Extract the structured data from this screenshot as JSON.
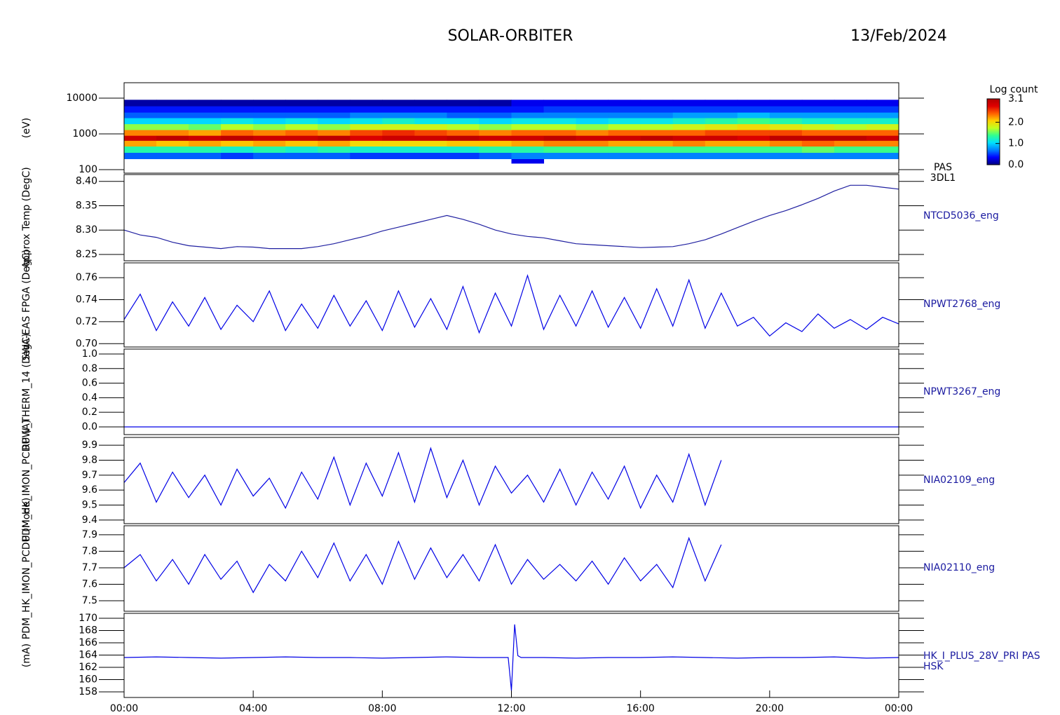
{
  "header": {
    "title": "SOLAR-ORBITER",
    "date": "13/Feb/2024"
  },
  "chart_data": [
    {
      "type": "heatmap",
      "ylabel": "(eV)",
      "labels": [
        "PAS",
        "3DL1"
      ],
      "log_y": true,
      "xlim": [
        0,
        24
      ],
      "ylim": [
        80,
        27000
      ],
      "yticks": [
        100,
        1000,
        10000
      ],
      "xbins": [
        0,
        1,
        2,
        3,
        4,
        5,
        6,
        7,
        8,
        9,
        10,
        11,
        12,
        13,
        14,
        15,
        16,
        17,
        18,
        19,
        20,
        21,
        22,
        23,
        24
      ],
      "ybins": [
        150,
        200,
        300,
        450,
        650,
        900,
        1300,
        1900,
        2800,
        4000,
        6000,
        9000
      ],
      "z": [
        [
          null,
          0.6,
          1.3,
          2.2,
          2.9,
          2.3,
          1.6,
          1.0,
          0.6,
          0.4,
          0.1
        ],
        [
          null,
          0.6,
          1.3,
          2.1,
          3.0,
          2.3,
          1.6,
          1.0,
          0.6,
          0.4,
          0.1
        ],
        [
          null,
          0.6,
          1.3,
          2.2,
          2.9,
          2.2,
          1.5,
          1.0,
          0.6,
          0.4,
          0.1
        ],
        [
          null,
          0.5,
          1.2,
          2.1,
          3.0,
          2.4,
          1.7,
          1.1,
          0.6,
          0.4,
          0.1
        ],
        [
          null,
          0.6,
          1.3,
          2.2,
          2.9,
          2.3,
          1.6,
          1.0,
          0.6,
          0.4,
          0.1
        ],
        [
          null,
          0.6,
          1.2,
          2.1,
          2.9,
          2.4,
          1.7,
          1.1,
          0.6,
          0.4,
          0.1
        ],
        [
          null,
          0.6,
          1.3,
          2.2,
          3.0,
          2.3,
          1.6,
          1.0,
          0.6,
          0.4,
          0.1
        ],
        [
          null,
          0.5,
          1.2,
          2.0,
          2.8,
          2.5,
          1.8,
          1.1,
          0.7,
          0.4,
          0.1
        ],
        [
          null,
          0.5,
          1.2,
          2.0,
          2.9,
          2.6,
          1.8,
          1.2,
          0.7,
          0.4,
          0.1
        ],
        [
          null,
          0.5,
          1.2,
          2.0,
          2.9,
          2.5,
          1.8,
          1.1,
          0.7,
          0.4,
          0.1
        ],
        [
          null,
          0.5,
          1.2,
          2.1,
          3.0,
          2.4,
          1.7,
          1.1,
          0.6,
          0.4,
          0.1
        ],
        [
          null,
          0.6,
          1.3,
          2.1,
          2.9,
          2.3,
          1.6,
          1.0,
          0.6,
          0.4,
          0.1
        ],
        [
          0.3,
          0.7,
          1.3,
          2.2,
          2.9,
          2.4,
          1.7,
          1.1,
          0.7,
          0.4,
          0.3
        ],
        [
          null,
          0.7,
          1.4,
          2.3,
          3.0,
          2.4,
          1.7,
          1.1,
          0.7,
          0.5,
          0.3
        ],
        [
          null,
          0.7,
          1.4,
          2.3,
          2.9,
          2.3,
          1.6,
          1.0,
          0.7,
          0.5,
          0.3
        ],
        [
          null,
          0.7,
          1.4,
          2.2,
          2.9,
          2.4,
          1.7,
          1.1,
          0.7,
          0.5,
          0.3
        ],
        [
          null,
          0.7,
          1.4,
          2.2,
          3.0,
          2.4,
          1.7,
          1.1,
          0.7,
          0.5,
          0.3
        ],
        [
          null,
          0.7,
          1.4,
          2.3,
          2.9,
          2.4,
          1.8,
          1.2,
          0.8,
          0.5,
          0.3
        ],
        [
          null,
          0.7,
          1.4,
          2.2,
          2.9,
          2.5,
          1.9,
          1.3,
          0.8,
          0.5,
          0.3
        ],
        [
          null,
          0.7,
          1.4,
          2.2,
          2.8,
          2.5,
          2.0,
          1.4,
          0.9,
          0.5,
          0.3
        ],
        [
          null,
          0.7,
          1.4,
          2.3,
          3.0,
          2.5,
          1.9,
          1.3,
          0.8,
          0.5,
          0.3
        ],
        [
          null,
          0.7,
          1.5,
          2.4,
          3.0,
          2.4,
          1.8,
          1.2,
          0.8,
          0.5,
          0.3
        ],
        [
          null,
          0.7,
          1.4,
          2.3,
          3.0,
          2.4,
          1.7,
          1.2,
          0.8,
          0.5,
          0.3
        ],
        [
          null,
          0.7,
          1.4,
          2.3,
          2.9,
          2.4,
          1.8,
          1.2,
          0.8,
          0.5,
          0.3
        ]
      ],
      "colorbar_title": "Log count",
      "clim": [
        0,
        3.1
      ],
      "cticks": [
        {
          "value": 0,
          "label": "0.0"
        },
        {
          "value": 1,
          "label": "1.0"
        },
        {
          "value": 2,
          "label": "2.0"
        },
        3.1
      ],
      "colorscale": [
        "#00007f",
        "#0000ff",
        "#0080ff",
        "#00e0ff",
        "#30ff90",
        "#c0ff20",
        "#ffd000",
        "#ff6000",
        "#e00000",
        "#b00000"
      ]
    },
    {
      "type": "line",
      "ylabel": "Approx Temp (DegC)",
      "xlim": [
        0,
        24
      ],
      "ylim": [
        8.237,
        8.414
      ],
      "yticks": [
        {
          "value": 8.25,
          "label": "8.25"
        },
        {
          "value": 8.3,
          "label": "8.30"
        },
        {
          "value": 8.35,
          "label": "8.35"
        },
        {
          "value": 8.4,
          "label": "8.40"
        }
      ],
      "x": [
        0,
        0.5,
        1,
        1.5,
        2,
        2.5,
        3,
        3.5,
        4,
        4.5,
        5,
        5.5,
        6,
        6.5,
        7,
        7.5,
        8,
        8.5,
        9,
        9.5,
        10,
        10.5,
        11,
        11.5,
        12,
        12.5,
        13,
        13.5,
        14,
        14.5,
        15,
        15.5,
        16,
        16.5,
        17,
        17.5,
        18,
        18.5,
        19,
        19.5,
        20,
        20.5,
        21,
        21.5,
        22,
        22.5,
        23,
        23.5,
        24
      ],
      "series": [
        {
          "name": "NTCD5036_eng",
          "color": "#1f1fa0",
          "values": [
            8.3,
            8.29,
            8.285,
            8.275,
            8.268,
            8.265,
            8.262,
            8.266,
            8.265,
            8.262,
            8.262,
            8.262,
            8.266,
            8.272,
            8.28,
            8.288,
            8.298,
            8.306,
            8.314,
            8.322,
            8.33,
            8.322,
            8.312,
            8.3,
            8.292,
            8.287,
            8.284,
            8.278,
            8.272,
            8.27,
            8.268,
            8.266,
            8.264,
            8.265,
            8.266,
            8.272,
            8.28,
            8.292,
            8.305,
            8.318,
            8.33,
            8.34,
            8.352,
            8.365,
            8.38,
            8.392,
            8.392,
            8.388,
            8.384
          ]
        }
      ]
    },
    {
      "type": "line",
      "ylabel": "SWA-EAS FPGA (DegC)",
      "xlim": [
        0,
        24
      ],
      "ylim": [
        0.697,
        0.7735
      ],
      "yticks": [
        {
          "value": 0.7,
          "label": "0.70"
        },
        0.72,
        0.74,
        0.76
      ],
      "x": [
        0,
        0.5,
        1,
        1.5,
        2,
        2.5,
        3,
        3.5,
        4,
        4.5,
        5,
        5.5,
        6,
        6.5,
        7,
        7.5,
        8,
        8.5,
        9,
        9.5,
        10,
        10.5,
        11,
        11.5,
        12,
        12.5,
        13,
        13.5,
        14,
        14.5,
        15,
        15.5,
        16,
        16.5,
        17,
        17.5,
        18,
        18.5,
        19,
        19.5,
        20,
        20.5,
        21,
        21.5,
        22,
        22.5,
        23,
        23.5,
        24
      ],
      "series": [
        {
          "name": "NPWT2768_eng",
          "color": "#0000e6",
          "values": [
            0.722,
            0.745,
            0.712,
            0.738,
            0.716,
            0.742,
            0.713,
            0.735,
            0.72,
            0.748,
            0.712,
            0.736,
            0.714,
            0.744,
            0.716,
            0.739,
            0.712,
            0.748,
            0.715,
            0.741,
            0.713,
            0.752,
            0.71,
            0.746,
            0.716,
            0.762,
            0.713,
            0.744,
            0.716,
            0.748,
            0.715,
            0.742,
            0.714,
            0.75,
            0.716,
            0.758,
            0.714,
            0.746,
            0.716,
            0.724,
            0.707,
            0.719,
            0.711,
            0.727,
            0.714,
            0.722,
            0.713,
            0.724,
            0.718
          ]
        }
      ]
    },
    {
      "type": "line",
      "ylabel": "RPW_THERM_14 (DegC)",
      "xlim": [
        0,
        24
      ],
      "ylim": [
        -0.106,
        1.067
      ],
      "yticks": [
        {
          "value": 0,
          "label": "0.0"
        },
        0.2,
        0.4,
        0.6,
        0.8,
        {
          "value": 1,
          "label": "1.0"
        }
      ],
      "x": [
        0,
        6,
        12,
        18,
        24
      ],
      "series": [
        {
          "name": "NPWT3267_eng",
          "color": "#0000e6",
          "values": [
            0,
            0,
            0,
            0,
            0
          ]
        }
      ]
    },
    {
      "type": "line",
      "ylabel": "PDM_HK_IMON_PCDU (A)",
      "xlim": [
        0,
        24
      ],
      "ylim": [
        9.376,
        9.952
      ],
      "yticks": [
        9.4,
        9.5,
        9.6,
        9.7,
        9.8,
        9.9
      ],
      "x": [
        0,
        0.5,
        1,
        1.5,
        2,
        2.5,
        3,
        3.5,
        4,
        4.5,
        5,
        5.5,
        6,
        6.5,
        7,
        7.5,
        8,
        8.5,
        9,
        9.5,
        10,
        10.5,
        11,
        11.5,
        12,
        12.5,
        13,
        13.5,
        14,
        14.5,
        15,
        15.5,
        16,
        16.5,
        17,
        17.5,
        18,
        18.5,
        19,
        19.5,
        20,
        20.5,
        21,
        21.5,
        22,
        22.5,
        23,
        23.5,
        24
      ],
      "series": [
        {
          "name": "NIA02109_eng",
          "color": "#0000e6",
          "values": [
            9.65,
            9.78,
            9.52,
            9.72,
            9.55,
            9.7,
            9.5,
            9.74,
            9.56,
            9.68,
            9.48,
            9.72,
            9.54,
            9.82,
            9.5,
            9.78,
            9.56,
            9.85,
            9.52,
            9.88,
            9.55,
            9.8,
            9.5,
            9.76,
            9.58,
            9.7,
            9.52,
            9.74,
            9.5,
            9.72,
            9.54,
            9.76,
            9.48,
            9.7,
            9.52,
            9.84,
            9.5,
            9.8,
            null,
            null,
            null,
            null,
            null,
            null,
            null,
            null,
            null,
            null,
            null
          ]
        }
      ]
    },
    {
      "type": "line",
      "ylabel": "PDM_HK_IMON_PCDU (Mode)",
      "xlim": [
        0,
        24
      ],
      "ylim": [
        7.436,
        7.955
      ],
      "yticks": [
        7.5,
        7.6,
        7.7,
        7.8,
        7.9
      ],
      "x": [
        0,
        0.5,
        1,
        1.5,
        2,
        2.5,
        3,
        3.5,
        4,
        4.5,
        5,
        5.5,
        6,
        6.5,
        7,
        7.5,
        8,
        8.5,
        9,
        9.5,
        10,
        10.5,
        11,
        11.5,
        12,
        12.5,
        13,
        13.5,
        14,
        14.5,
        15,
        15.5,
        16,
        16.5,
        17,
        17.5,
        18,
        18.5,
        19,
        19.5,
        20,
        20.5,
        21,
        21.5,
        22,
        22.5,
        23,
        23.5,
        24
      ],
      "series": [
        {
          "name": "NIA02110_eng",
          "color": "#0000e6",
          "values": [
            7.7,
            7.78,
            7.62,
            7.75,
            7.6,
            7.78,
            7.63,
            7.74,
            7.55,
            7.72,
            7.62,
            7.8,
            7.64,
            7.85,
            7.62,
            7.78,
            7.6,
            7.86,
            7.63,
            7.82,
            7.64,
            7.78,
            7.62,
            7.84,
            7.6,
            7.75,
            7.63,
            7.72,
            7.62,
            7.74,
            7.6,
            7.76,
            7.62,
            7.72,
            7.58,
            7.88,
            7.62,
            7.84,
            null,
            null,
            null,
            null,
            null,
            null,
            null,
            null,
            null,
            null,
            null
          ]
        }
      ]
    },
    {
      "type": "line",
      "ylabel": "(mA)",
      "labels": [
        "HSK"
      ],
      "xlim": [
        0,
        24
      ],
      "ylim": [
        157.09,
        170.8
      ],
      "yticks": [
        158,
        160,
        162,
        164,
        166,
        168,
        170
      ],
      "xticks": [
        {
          "value": 0,
          "label": "00:00"
        },
        {
          "value": 4,
          "label": "04:00"
        },
        {
          "value": 8,
          "label": "08:00"
        },
        {
          "value": 12,
          "label": "12:00"
        },
        {
          "value": 16,
          "label": "16:00"
        },
        {
          "value": 20,
          "label": "20:00"
        },
        {
          "value": 24,
          "label": "00:00"
        }
      ],
      "x": [
        0,
        1,
        2,
        3,
        4,
        5,
        6,
        7,
        8,
        9,
        10,
        11,
        11.9,
        12,
        12.1,
        12.2,
        12.3,
        13,
        14,
        15,
        16,
        17,
        18,
        19,
        20,
        21,
        22,
        23,
        24
      ],
      "series": [
        {
          "name": "HK_I_PLUS_28V_PRI PAS",
          "color": "#0000e6",
          "values": [
            163.6,
            163.7,
            163.6,
            163.5,
            163.6,
            163.7,
            163.6,
            163.6,
            163.5,
            163.6,
            163.7,
            163.6,
            163.6,
            158.2,
            169.0,
            163.9,
            163.6,
            163.6,
            163.5,
            163.6,
            163.6,
            163.7,
            163.6,
            163.5,
            163.6,
            163.6,
            163.7,
            163.5,
            163.6
          ]
        }
      ]
    }
  ]
}
